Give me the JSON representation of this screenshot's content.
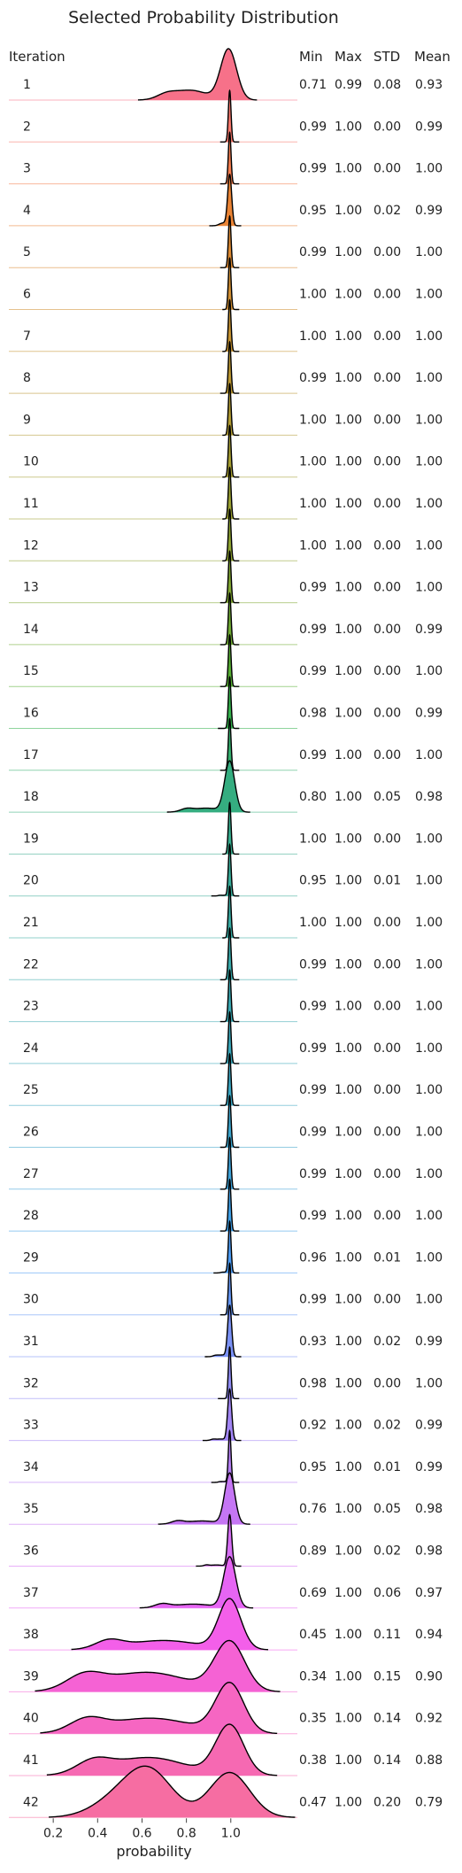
{
  "chart_data": {
    "type": "area",
    "title": "Selected Probability Distribution",
    "xlabel": "probability",
    "x_ticks": [
      0.2,
      0.4,
      0.6,
      0.8,
      1.0
    ],
    "xlim": [
      0.0,
      1.3
    ],
    "columns": [
      "Iteration",
      "Min",
      "Max",
      "STD",
      "Mean"
    ],
    "rows": [
      {
        "iteration": "1",
        "min": "0.71",
        "max": "0.99",
        "std": "0.08",
        "mean": "0.93",
        "color": "#f77189"
      },
      {
        "iteration": "2",
        "min": "0.99",
        "max": "1.00",
        "std": "0.00",
        "mean": "0.99",
        "color": "#f7776b"
      },
      {
        "iteration": "3",
        "min": "0.99",
        "max": "1.00",
        "std": "0.00",
        "mean": "1.00",
        "color": "#f47c4d"
      },
      {
        "iteration": "4",
        "min": "0.95",
        "max": "1.00",
        "std": "0.02",
        "mean": "0.99",
        "color": "#e98334"
      },
      {
        "iteration": "5",
        "min": "0.99",
        "max": "1.00",
        "std": "0.00",
        "mean": "1.00",
        "color": "#dc8932"
      },
      {
        "iteration": "6",
        "min": "1.00",
        "max": "1.00",
        "std": "0.00",
        "mean": "1.00",
        "color": "#d08e32"
      },
      {
        "iteration": "7",
        "min": "1.00",
        "max": "1.00",
        "std": "0.00",
        "mean": "1.00",
        "color": "#c59231"
      },
      {
        "iteration": "8",
        "min": "0.99",
        "max": "1.00",
        "std": "0.00",
        "mean": "1.00",
        "color": "#ba9631"
      },
      {
        "iteration": "9",
        "min": "1.00",
        "max": "1.00",
        "std": "0.00",
        "mean": "1.00",
        "color": "#b09a31"
      },
      {
        "iteration": "10",
        "min": "1.00",
        "max": "1.00",
        "std": "0.00",
        "mean": "1.00",
        "color": "#a59d31"
      },
      {
        "iteration": "11",
        "min": "1.00",
        "max": "1.00",
        "std": "0.00",
        "mean": "1.00",
        "color": "#9aa031"
      },
      {
        "iteration": "12",
        "min": "1.00",
        "max": "1.00",
        "std": "0.00",
        "mean": "1.00",
        "color": "#8ea331"
      },
      {
        "iteration": "13",
        "min": "0.99",
        "max": "1.00",
        "std": "0.00",
        "mean": "1.00",
        "color": "#80a631"
      },
      {
        "iteration": "14",
        "min": "0.99",
        "max": "1.00",
        "std": "0.00",
        "mean": "0.99",
        "color": "#6ea932"
      },
      {
        "iteration": "15",
        "min": "0.99",
        "max": "1.00",
        "std": "0.00",
        "mean": "1.00",
        "color": "#55ad32"
      },
      {
        "iteration": "16",
        "min": "0.98",
        "max": "1.00",
        "std": "0.00",
        "mean": "0.99",
        "color": "#33b04b"
      },
      {
        "iteration": "17",
        "min": "0.99",
        "max": "1.00",
        "std": "0.00",
        "mean": "1.00",
        "color": "#34ae6d"
      },
      {
        "iteration": "18",
        "min": "0.80",
        "max": "1.00",
        "std": "0.05",
        "mean": "0.98",
        "color": "#35ad80"
      },
      {
        "iteration": "19",
        "min": "1.00",
        "max": "1.00",
        "std": "0.00",
        "mean": "1.00",
        "color": "#35ab8d"
      },
      {
        "iteration": "20",
        "min": "0.95",
        "max": "1.00",
        "std": "0.01",
        "mean": "1.00",
        "color": "#36aa98"
      },
      {
        "iteration": "21",
        "min": "1.00",
        "max": "1.00",
        "std": "0.00",
        "mean": "1.00",
        "color": "#37a9a1"
      },
      {
        "iteration": "22",
        "min": "0.99",
        "max": "1.00",
        "std": "0.00",
        "mean": "1.00",
        "color": "#37a8a9"
      },
      {
        "iteration": "23",
        "min": "0.99",
        "max": "1.00",
        "std": "0.00",
        "mean": "1.00",
        "color": "#38a7b1"
      },
      {
        "iteration": "24",
        "min": "0.99",
        "max": "1.00",
        "std": "0.00",
        "mean": "1.00",
        "color": "#39a6b9"
      },
      {
        "iteration": "25",
        "min": "0.99",
        "max": "1.00",
        "std": "0.00",
        "mean": "1.00",
        "color": "#3aa5c1"
      },
      {
        "iteration": "26",
        "min": "0.99",
        "max": "1.00",
        "std": "0.00",
        "mean": "1.00",
        "color": "#3ba3cb"
      },
      {
        "iteration": "27",
        "min": "0.99",
        "max": "1.00",
        "std": "0.00",
        "mean": "1.00",
        "color": "#3da1d7"
      },
      {
        "iteration": "28",
        "min": "0.99",
        "max": "1.00",
        "std": "0.00",
        "mean": "1.00",
        "color": "#3e9fe6"
      },
      {
        "iteration": "29",
        "min": "0.96",
        "max": "1.00",
        "std": "0.01",
        "mean": "1.00",
        "color": "#4b9bf4"
      },
      {
        "iteration": "30",
        "min": "0.99",
        "max": "1.00",
        "std": "0.00",
        "mean": "1.00",
        "color": "#6496f4"
      },
      {
        "iteration": "31",
        "min": "0.93",
        "max": "1.00",
        "std": "0.02",
        "mean": "0.99",
        "color": "#7a91f4"
      },
      {
        "iteration": "32",
        "min": "0.98",
        "max": "1.00",
        "std": "0.00",
        "mean": "1.00",
        "color": "#8e8bf4"
      },
      {
        "iteration": "33",
        "min": "0.92",
        "max": "1.00",
        "std": "0.02",
        "mean": "0.99",
        "color": "#a185f4"
      },
      {
        "iteration": "34",
        "min": "0.95",
        "max": "1.00",
        "std": "0.01",
        "mean": "0.99",
        "color": "#b47ef4"
      },
      {
        "iteration": "35",
        "min": "0.76",
        "max": "1.00",
        "std": "0.05",
        "mean": "0.98",
        "color": "#c576f4"
      },
      {
        "iteration": "36",
        "min": "0.89",
        "max": "1.00",
        "std": "0.02",
        "mean": "0.98",
        "color": "#d66ef4"
      },
      {
        "iteration": "37",
        "min": "0.69",
        "max": "1.00",
        "std": "0.06",
        "mean": "0.97",
        "color": "#e665f3"
      },
      {
        "iteration": "38",
        "min": "0.45",
        "max": "1.00",
        "std": "0.11",
        "mean": "0.94",
        "color": "#f35fe9"
      },
      {
        "iteration": "39",
        "min": "0.34",
        "max": "1.00",
        "std": "0.15",
        "mean": "0.90",
        "color": "#f562d4"
      },
      {
        "iteration": "40",
        "min": "0.35",
        "max": "1.00",
        "std": "0.14",
        "mean": "0.92",
        "color": "#f666c2"
      },
      {
        "iteration": "41",
        "min": "0.38",
        "max": "1.00",
        "std": "0.14",
        "mean": "0.88",
        "color": "#f669b2"
      },
      {
        "iteration": "42",
        "min": "0.47",
        "max": "1.00",
        "std": "0.20",
        "mean": "0.79",
        "color": "#f66da2"
      }
    ]
  }
}
